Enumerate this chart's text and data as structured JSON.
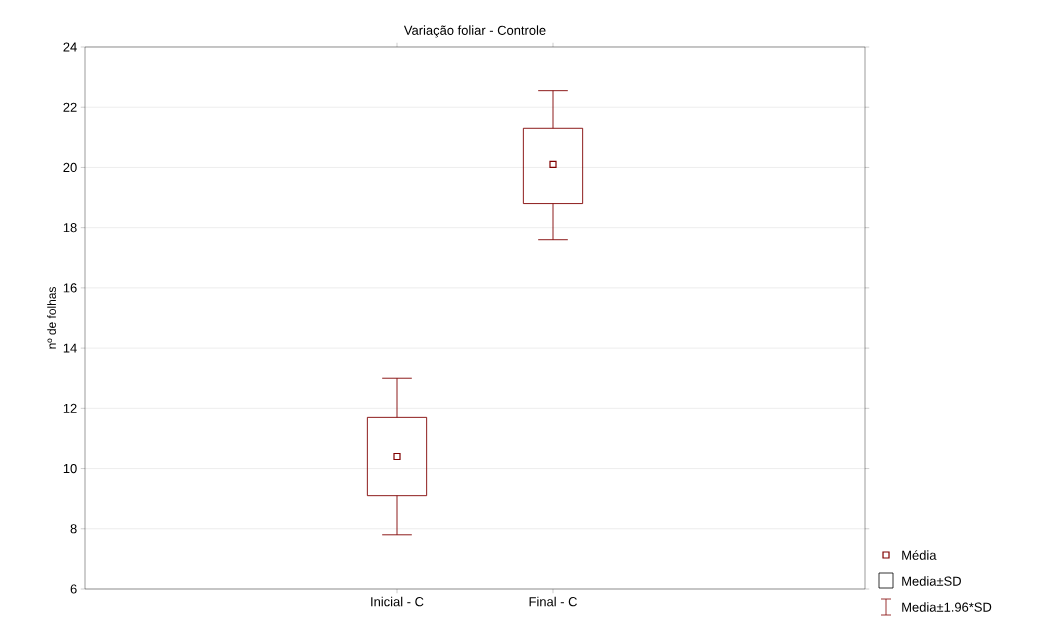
{
  "chart_data": {
    "type": "box",
    "title": "Variação foliar - Controle",
    "ylabel": "nº de folhas",
    "categories": [
      "Inicial - C",
      "Final - C"
    ],
    "boxes": [
      {
        "low": 7.8,
        "q1": 9.1,
        "median": 10.4,
        "q3": 11.7,
        "high": 13.0
      },
      {
        "low": 17.6,
        "q1": 18.8,
        "median": 20.1,
        "q3": 21.3,
        "high": 22.55
      }
    ],
    "color": "#800000",
    "ylim": [
      6,
      24
    ],
    "yticks": [
      6,
      8,
      10,
      12,
      14,
      16,
      18,
      20,
      22,
      24
    ],
    "grid": "y",
    "marker": "square",
    "annotations": [
      "Média",
      "Media±SD",
      "Media±1.96*SD"
    ]
  }
}
